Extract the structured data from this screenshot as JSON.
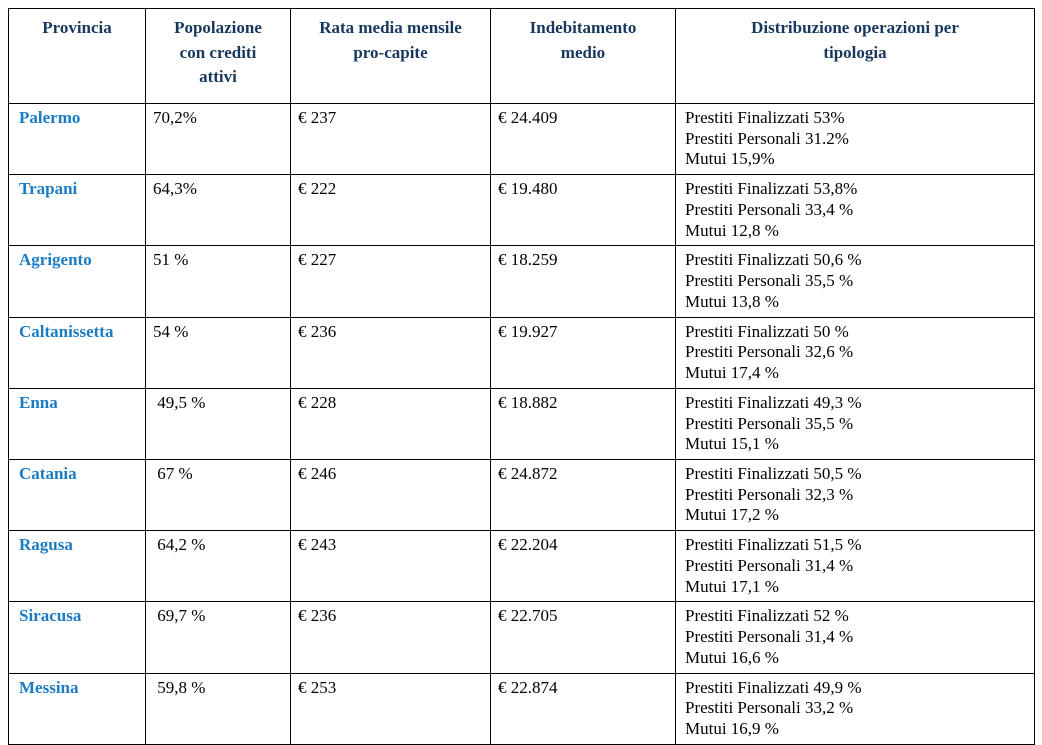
{
  "colors": {
    "header_text": "#17375D",
    "province_text": "#1B7CC3",
    "body_text": "#000000",
    "border": "#000000",
    "background": "#FFFFFF"
  },
  "table": {
    "headers": {
      "provincia": "Provincia",
      "popolazione": "Popolazione\ncon crediti\nattivi",
      "rata": "Rata media mensile\npro-capite",
      "indebitamento": "Indebitamento\nmedio",
      "distribuzione": "Distribuzione operazioni per\ntipologia"
    },
    "rows": [
      {
        "provincia": "Palermo",
        "popolazione": "70,2%",
        "rata": "€ 237",
        "indebitamento": "€ 24.409",
        "distribuzione": "Prestiti Finalizzati 53%\nPrestiti Personali 31.2%\nMutui 15,9%"
      },
      {
        "provincia": "Trapani",
        "popolazione": "64,3%",
        "rata": "€ 222",
        "indebitamento": "€ 19.480",
        "distribuzione": "Prestiti Finalizzati 53,8%\nPrestiti Personali 33,4 %\nMutui 12,8 %"
      },
      {
        "provincia": "Agrigento",
        "popolazione": "51 %",
        "rata": "€ 227",
        "indebitamento": "€ 18.259",
        "distribuzione": "Prestiti Finalizzati 50,6 %\nPrestiti Personali 35,5 %\nMutui 13,8 %"
      },
      {
        "provincia": "Caltanissetta",
        "popolazione": "54 %",
        "rata": "€ 236",
        "indebitamento": "€ 19.927",
        "distribuzione": "Prestiti Finalizzati 50 %\nPrestiti Personali 32,6 %\nMutui 17,4 %"
      },
      {
        "provincia": "Enna",
        "popolazione": " 49,5 %",
        "rata": "€ 228",
        "indebitamento": "€ 18.882",
        "distribuzione": "Prestiti Finalizzati 49,3 %\nPrestiti Personali 35,5 %\nMutui 15,1 %"
      },
      {
        "provincia": "Catania",
        "popolazione": " 67 %",
        "rata": "€ 246",
        "indebitamento": "€ 24.872",
        "distribuzione": "Prestiti Finalizzati 50,5 %\nPrestiti Personali 32,3 %\nMutui 17,2 %"
      },
      {
        "provincia": "Ragusa",
        "popolazione": " 64,2 %",
        "rata": "€ 243",
        "indebitamento": "€ 22.204",
        "distribuzione": "Prestiti Finalizzati 51,5 %\nPrestiti Personali 31,4 %\nMutui 17,1 %"
      },
      {
        "provincia": "Siracusa",
        "popolazione": " 69,7 %",
        "rata": "€ 236",
        "indebitamento": "€ 22.705",
        "distribuzione": "Prestiti Finalizzati 52 %\nPrestiti Personali 31,4 %\nMutui 16,6 %"
      },
      {
        "provincia": "Messina",
        "popolazione": " 59,8 %",
        "rata": "€ 253",
        "indebitamento": "€ 22.874",
        "distribuzione": "Prestiti Finalizzati 49,9 %\nPrestiti Personali 33,2 %\nMutui 16,9 %"
      }
    ]
  }
}
